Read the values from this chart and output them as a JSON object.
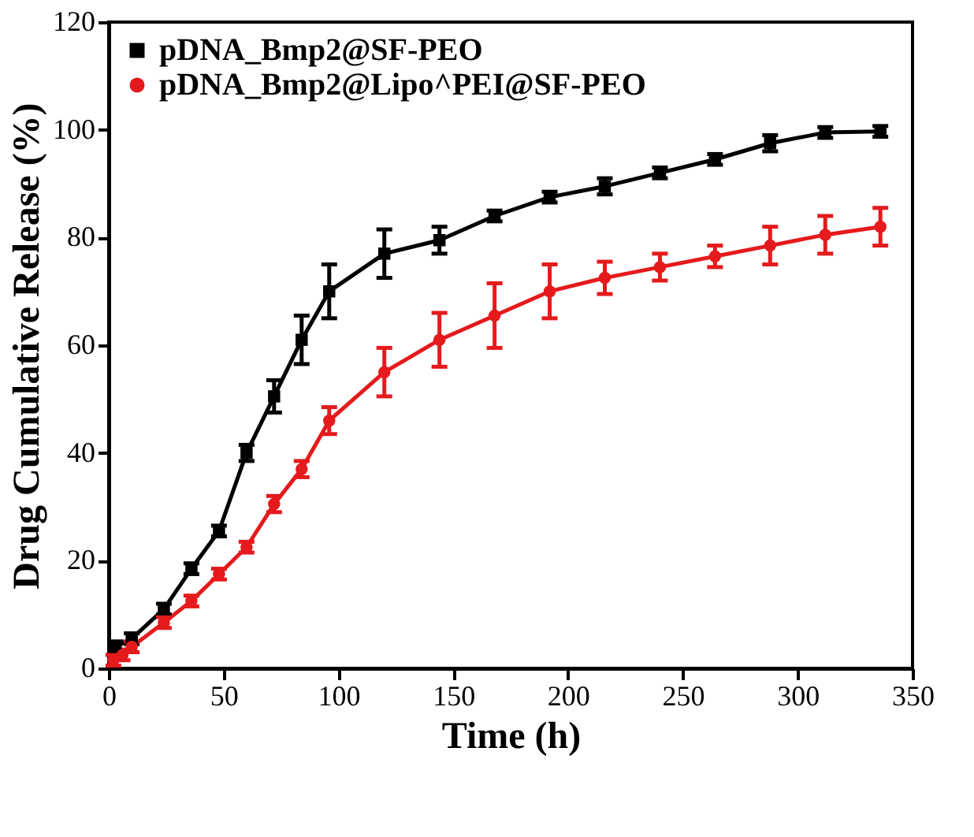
{
  "chart_data": {
    "type": "line",
    "xlabel": "Time (h)",
    "ylabel": "Drug Cumulative Release (%)",
    "xlim": [
      0,
      350
    ],
    "xticks": [
      0,
      50,
      100,
      150,
      200,
      250,
      300,
      350
    ],
    "ylim": [
      0,
      120
    ],
    "yticks": [
      0,
      20,
      40,
      60,
      80,
      100,
      120
    ],
    "grid": false,
    "legend": "top left",
    "line_style": "solid",
    "series": [
      {
        "name": "pDNA_Bmp2@SF-PEO",
        "color": "#000000",
        "marker": "square",
        "x": [
          3,
          10,
          24,
          36,
          48,
          60,
          72,
          84,
          96,
          120,
          144,
          168,
          192,
          216,
          240,
          264,
          288,
          312,
          336
        ],
        "values": [
          4,
          5.5,
          11,
          18.5,
          25.5,
          40,
          50.5,
          61,
          70,
          77,
          79.5,
          84,
          87.5,
          89.5,
          92,
          94.5,
          97.5,
          99.5,
          99.7
        ],
        "errors": [
          1,
          1,
          1,
          1,
          1,
          1.5,
          3,
          4.5,
          5,
          4.5,
          2.5,
          1,
          1,
          1.5,
          1,
          1,
          1.5,
          1,
          1
        ]
      },
      {
        "name": "pDNA_Bmp2@Lipo^PEI@SF-PEO",
        "color": "#e41a1c",
        "marker": "circle",
        "x": [
          2,
          6,
          10,
          24,
          36,
          48,
          60,
          72,
          84,
          96,
          120,
          144,
          168,
          192,
          216,
          240,
          264,
          288,
          312,
          336
        ],
        "values": [
          1.5,
          2.5,
          4,
          8.5,
          12.5,
          17.5,
          22.5,
          30.5,
          37,
          46,
          55,
          61,
          65.5,
          70,
          72.5,
          74.5,
          76.5,
          78.5,
          80.5,
          82
        ],
        "errors": [
          1,
          1,
          1,
          1,
          1,
          1,
          1,
          1.5,
          1.5,
          2.5,
          4.5,
          5,
          6,
          5,
          3,
          2.5,
          2,
          3.5,
          3.5,
          3.5
        ]
      }
    ]
  }
}
